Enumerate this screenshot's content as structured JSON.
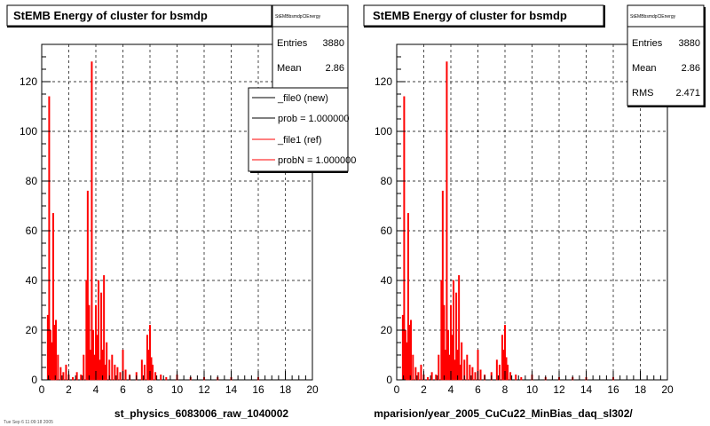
{
  "chart_data": [
    {
      "type": "bar",
      "title": "StEMB Energy of cluster for bsmdp",
      "xlabel": "st_physics_6083006_raw_1040002",
      "xlim": [
        0,
        20
      ],
      "ylim": [
        0,
        135
      ],
      "x_ticks": [
        "0",
        "2",
        "4",
        "6",
        "8",
        "10",
        "12",
        "14",
        "16",
        "18",
        "20"
      ],
      "y_ticks": [
        "0",
        "20",
        "40",
        "60",
        "80",
        "100",
        "120"
      ],
      "grid": true,
      "stats": {
        "name": "StEMBbsmdpClEnergy",
        "rows": [
          {
            "label": "Entries",
            "value": "3880"
          },
          {
            "label": "Mean",
            "value": "2.86"
          }
        ]
      },
      "legend": [
        {
          "label": "_file0 (new)",
          "color": "#000000"
        },
        {
          "label": "prob = 1.000000",
          "color": "#000000"
        },
        {
          "label": "_file1 (ref)",
          "color": "#ff0000"
        },
        {
          "label": "probN = 1.000000",
          "color": "#ff0000"
        }
      ],
      "series": [
        {
          "color": "#ff0000",
          "x": [
            0.45,
            0.55,
            0.65,
            0.75,
            0.85,
            0.95,
            1.05,
            1.2,
            1.4,
            1.6,
            1.8,
            2.0,
            2.3,
            2.6,
            2.9,
            3.1,
            3.3,
            3.4,
            3.5,
            3.6,
            3.7,
            3.8,
            3.9,
            4.0,
            4.1,
            4.2,
            4.3,
            4.4,
            4.5,
            4.6,
            4.7,
            4.8,
            5.0,
            5.2,
            5.4,
            5.6,
            5.8,
            6.0,
            6.2,
            6.5,
            7.0,
            7.4,
            7.6,
            7.8,
            7.9,
            8.0,
            8.1,
            8.2,
            8.4,
            8.8,
            9.2,
            10.0,
            11.0,
            12.0,
            13.0,
            14.0,
            16.0
          ],
          "y": [
            26,
            114,
            20,
            15,
            67,
            22,
            24,
            10,
            5,
            3,
            6,
            2,
            1,
            3,
            2,
            10,
            40,
            76,
            30,
            12,
            128,
            20,
            10,
            30,
            18,
            40,
            8,
            35,
            12,
            42,
            6,
            15,
            8,
            10,
            6,
            5,
            3,
            12,
            4,
            2,
            3,
            8,
            6,
            18,
            12,
            22,
            9,
            6,
            3,
            2,
            1,
            2,
            1,
            1,
            1,
            1,
            1
          ]
        }
      ]
    },
    {
      "type": "bar",
      "title": "StEMB Energy of cluster for bsmdp",
      "xlabel": "mparision/year_2005_CuCu22_MinBias_daq_sl302/",
      "xlim": [
        0,
        20
      ],
      "ylim": [
        0,
        135
      ],
      "x_ticks": [
        "0",
        "2",
        "4",
        "6",
        "8",
        "10",
        "12",
        "14",
        "16",
        "18",
        "20"
      ],
      "y_ticks": [
        "0",
        "20",
        "40",
        "60",
        "80",
        "100",
        "120"
      ],
      "grid": true,
      "stats": {
        "name": "StEMBbsmdpClEnergy",
        "rows": [
          {
            "label": "Entries",
            "value": "3880"
          },
          {
            "label": "Mean",
            "value": "2.86"
          },
          {
            "label": "RMS",
            "value": "2.471"
          }
        ]
      },
      "series": [
        {
          "color": "#ff0000",
          "x": [
            0.45,
            0.55,
            0.65,
            0.75,
            0.85,
            0.95,
            1.05,
            1.2,
            1.4,
            1.6,
            1.8,
            2.0,
            2.3,
            2.6,
            2.9,
            3.1,
            3.3,
            3.4,
            3.5,
            3.6,
            3.7,
            3.8,
            3.9,
            4.0,
            4.1,
            4.2,
            4.3,
            4.4,
            4.5,
            4.6,
            4.7,
            4.8,
            5.0,
            5.2,
            5.4,
            5.6,
            5.8,
            6.0,
            6.2,
            6.5,
            7.0,
            7.4,
            7.6,
            7.8,
            7.9,
            8.0,
            8.1,
            8.2,
            8.4,
            8.8,
            9.2,
            10.0,
            11.0,
            12.0,
            13.0,
            14.0,
            16.0
          ],
          "y": [
            26,
            114,
            20,
            15,
            67,
            22,
            24,
            10,
            5,
            3,
            6,
            2,
            1,
            3,
            2,
            10,
            40,
            76,
            30,
            12,
            128,
            20,
            10,
            30,
            18,
            40,
            8,
            35,
            12,
            42,
            6,
            15,
            8,
            10,
            6,
            5,
            3,
            12,
            4,
            2,
            3,
            8,
            6,
            18,
            12,
            22,
            9,
            6,
            3,
            2,
            1,
            2,
            1,
            1,
            1,
            1,
            1
          ]
        }
      ]
    }
  ],
  "footer_text": "Tue Sep  6 11:09:18 2005"
}
